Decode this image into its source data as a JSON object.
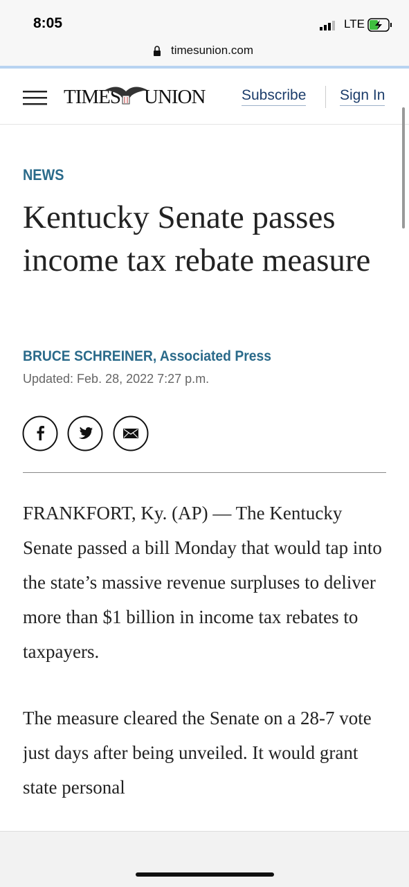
{
  "status_bar": {
    "time": "8:05",
    "network": "LTE"
  },
  "browser": {
    "url": "timesunion.com"
  },
  "header": {
    "logo_left": "TIMES",
    "logo_right": "UNION",
    "subscribe": "Subscribe",
    "sign_in": "Sign In"
  },
  "article": {
    "section": "NEWS",
    "headline": "Kentucky Senate passes income tax rebate measure",
    "byline": "BRUCE SCHREINER, Associated Press",
    "updated": "Updated: Feb. 28, 2022 7:27 p.m.",
    "paragraphs": [
      "FRANKFORT, Ky. (AP) — The Kentucky Senate passed a bill Monday that would tap into the state’s massive revenue surpluses to deliver more than $1 billion in income tax rebates to taxpayers.",
      "The measure cleared the Senate on a 28-7 vote just days after being unveiled. It would grant state personal"
    ]
  }
}
